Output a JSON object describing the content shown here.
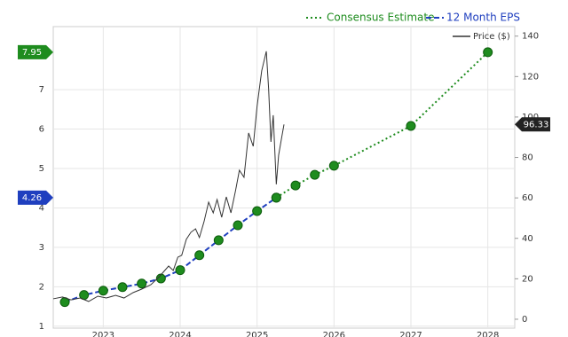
{
  "chart_data": {
    "type": "line",
    "xlim": [
      2022.35,
      2028.35
    ],
    "xticks": [
      2023,
      2024,
      2025,
      2026,
      2027,
      2028
    ],
    "ylim": [
      0.95,
      8.6
    ],
    "yticks": [
      1,
      2,
      3,
      4,
      5,
      6,
      7
    ],
    "y2lim": [
      -4.4,
      144.7
    ],
    "y2ticks": [
      0,
      20,
      40,
      60,
      80,
      100,
      120,
      140
    ],
    "grid": true,
    "series": [
      {
        "name": "12 Month EPS",
        "color": "#1f3fbf",
        "dash": "dashed",
        "marker": true,
        "axis": "y",
        "x": [
          2022.5,
          2022.75,
          2023,
          2023.25,
          2023.5,
          2023.75,
          2024,
          2024.25,
          2024.5,
          2024.75,
          2025,
          2025.25
        ],
        "values": [
          1.61,
          1.79,
          1.9,
          1.99,
          2.08,
          2.21,
          2.42,
          2.8,
          3.18,
          3.56,
          3.92,
          4.26
        ]
      },
      {
        "name": "Consensus Estimate",
        "color": "#1e8c1e",
        "dash": "dotted",
        "marker": true,
        "axis": "y",
        "x": [
          2025.25,
          2025.5,
          2025.75,
          2026,
          2027,
          2028
        ],
        "values": [
          4.26,
          4.57,
          4.84,
          5.07,
          6.08,
          7.95
        ]
      },
      {
        "name": "Price ($)",
        "color": "#333333",
        "dash": "solid",
        "marker": false,
        "axis": "y2",
        "x": [
          2022.35,
          2022.47,
          2022.58,
          2022.7,
          2022.81,
          2022.93,
          2023.04,
          2023.16,
          2023.27,
          2023.39,
          2023.5,
          2023.62,
          2023.73,
          2023.85,
          2023.91,
          2023.97,
          2024.02,
          2024.08,
          2024.14,
          2024.2,
          2024.25,
          2024.31,
          2024.37,
          2024.43,
          2024.48,
          2024.54,
          2024.6,
          2024.66,
          2024.72,
          2024.77,
          2024.83,
          2024.89,
          2024.95,
          2025.0,
          2025.06,
          2025.12,
          2025.15,
          2025.18,
          2025.21,
          2025.25,
          2025.28,
          2025.32,
          2025.35
        ],
        "values": [
          10.1,
          11,
          9.6,
          10.5,
          8.8,
          11.4,
          10.5,
          11.8,
          10.5,
          13.2,
          14.9,
          17.1,
          21.1,
          26.3,
          24.1,
          30.7,
          31.6,
          39.5,
          43,
          44.7,
          40.4,
          48.2,
          57.9,
          52.6,
          59.2,
          50.4,
          60.5,
          52.6,
          63.6,
          73.7,
          70.2,
          92.1,
          85.5,
          105.3,
          122.8,
          132.5,
          114,
          87.7,
          100.9,
          66.7,
          81.1,
          89.9,
          96.33
        ]
      }
    ]
  }
}
